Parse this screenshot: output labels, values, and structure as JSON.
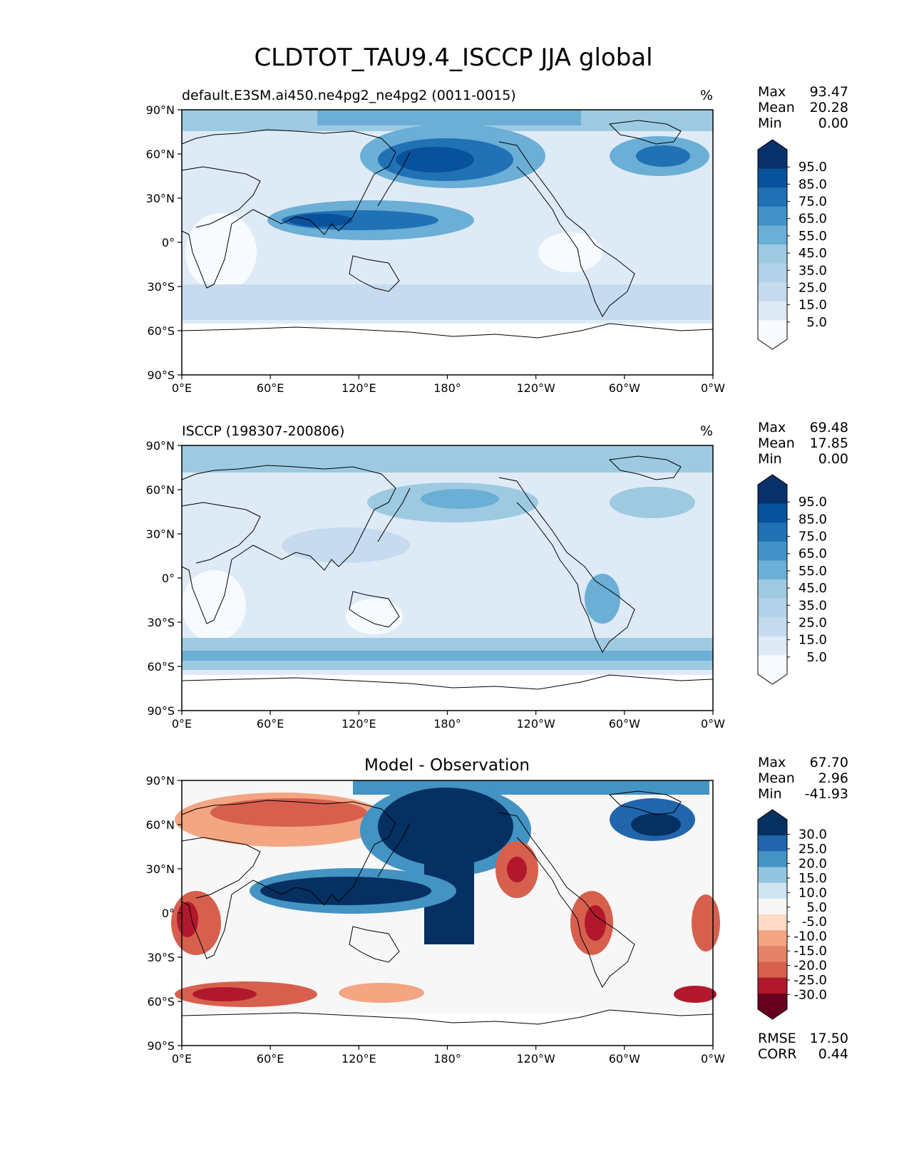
{
  "title": "CLDTOT_TAU9.4_ISCCP JJA global",
  "x_ticks": [
    "0°E",
    "60°E",
    "120°E",
    "180°",
    "120°W",
    "60°W",
    "0°W"
  ],
  "y_ticks": [
    "90°N",
    "60°N",
    "30°N",
    "0°",
    "30°S",
    "60°S",
    "90°S"
  ],
  "stat_labels": {
    "max": "Max",
    "mean": "Mean",
    "min": "Min",
    "rmse": "RMSE",
    "corr": "CORR"
  },
  "panels": [
    {
      "id": "model",
      "left_title": "default.E3SM.ai450.ne4pg2_ne4pg2 (0011-0015)",
      "center_title": "",
      "units": "%",
      "stats": {
        "max": "93.47",
        "mean": "20.28",
        "min": "0.00"
      },
      "colorbar_labels": [
        "95.0",
        "85.0",
        "75.0",
        "65.0",
        "55.0",
        "45.0",
        "35.0",
        "25.0",
        "15.0",
        "5.0"
      ]
    },
    {
      "id": "obs",
      "left_title": "ISCCP (198307-200806)",
      "center_title": "",
      "units": "%",
      "stats": {
        "max": "69.48",
        "mean": "17.85",
        "min": "0.00"
      },
      "colorbar_labels": [
        "95.0",
        "85.0",
        "75.0",
        "65.0",
        "55.0",
        "45.0",
        "35.0",
        "25.0",
        "15.0",
        "5.0"
      ]
    },
    {
      "id": "diff",
      "left_title": "",
      "center_title": "Model - Observation",
      "units": "",
      "stats": {
        "max": "67.70",
        "mean": "2.96",
        "min": "-41.93"
      },
      "colorbar_labels": [
        "30.0",
        "25.0",
        "20.0",
        "15.0",
        "10.0",
        "5.0",
        "-5.0",
        "-10.0",
        "-15.0",
        "-20.0",
        "-25.0",
        "-30.0"
      ],
      "rmse": "17.50",
      "corr": "0.44"
    }
  ],
  "colors": {
    "blues": [
      "#f7fbff",
      "#deebf7",
      "#c6dbef",
      "#b3d2e9",
      "#9ecae1",
      "#6baed6",
      "#4292c6",
      "#2171b5",
      "#08519c",
      "#08306b"
    ],
    "diverging": [
      "#67001f",
      "#b2182b",
      "#d6604d",
      "#e58368",
      "#f4a582",
      "#fddbc7",
      "#f7f7f7",
      "#d1e5f0",
      "#92c5de",
      "#4393c3",
      "#2166ac",
      "#053061"
    ],
    "no_data": "#ffffff",
    "coastline": "#000000"
  }
}
